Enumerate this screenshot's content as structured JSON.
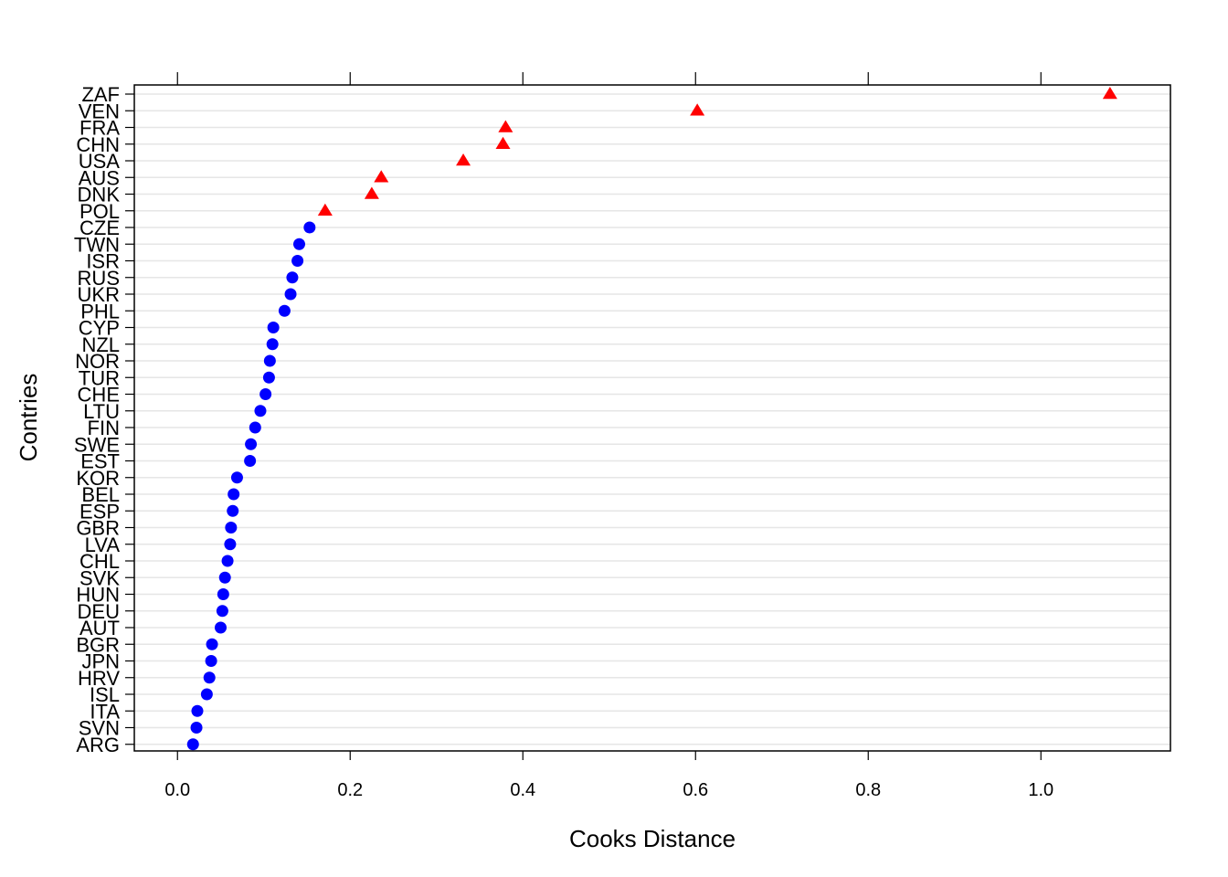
{
  "chart_data": {
    "type": "scatter",
    "title": "",
    "xlabel": "Cooks Distance",
    "ylabel": "Contries",
    "xlim": [
      -0.05,
      1.15
    ],
    "x_ticks": [
      0.0,
      0.2,
      0.4,
      0.6,
      0.8,
      1.0
    ],
    "x_tick_labels": [
      "0.0",
      "0.2",
      "0.4",
      "0.6",
      "0.8",
      "1.0"
    ],
    "grid": true,
    "categories": [
      "ZAF",
      "VEN",
      "FRA",
      "CHN",
      "USA",
      "AUS",
      "DNK",
      "POL",
      "CZE",
      "TWN",
      "ISR",
      "RUS",
      "UKR",
      "PHL",
      "CYP",
      "NZL",
      "NOR",
      "TUR",
      "CHE",
      "LTU",
      "FIN",
      "SWE",
      "EST",
      "KOR",
      "BEL",
      "ESP",
      "GBR",
      "LVA",
      "CHL",
      "SVK",
      "HUN",
      "DEU",
      "AUT",
      "BGR",
      "JPN",
      "HRV",
      "ISL",
      "ITA",
      "SVN",
      "ARG"
    ],
    "values": [
      1.08,
      0.602,
      0.38,
      0.377,
      0.331,
      0.236,
      0.225,
      0.171,
      0.153,
      0.141,
      0.139,
      0.133,
      0.131,
      0.124,
      0.111,
      0.11,
      0.107,
      0.106,
      0.102,
      0.096,
      0.09,
      0.085,
      0.084,
      0.069,
      0.065,
      0.064,
      0.062,
      0.061,
      0.058,
      0.055,
      0.053,
      0.052,
      0.05,
      0.04,
      0.039,
      0.037,
      0.034,
      0.023,
      0.022,
      0.018
    ],
    "influential": [
      true,
      true,
      true,
      true,
      true,
      true,
      true,
      true,
      false,
      false,
      false,
      false,
      false,
      false,
      false,
      false,
      false,
      false,
      false,
      false,
      false,
      false,
      false,
      false,
      false,
      false,
      false,
      false,
      false,
      false,
      false,
      false,
      false,
      false,
      false,
      false,
      false,
      false,
      false,
      false
    ],
    "colors": {
      "influential": "#ff0000",
      "normal": "#0000ff",
      "grid": "#e6e6e6",
      "axis": "#000000"
    },
    "markers": {
      "influential": "triangle",
      "normal": "circle"
    }
  }
}
